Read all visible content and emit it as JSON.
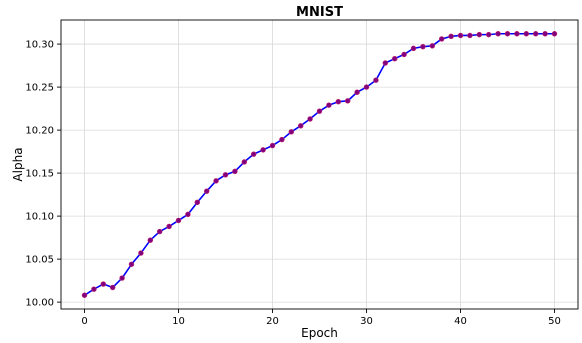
{
  "chart_data": {
    "type": "line",
    "title": "MNIST",
    "xlabel": "Epoch",
    "ylabel": "Alpha",
    "xlim": [
      -2.5,
      52.5
    ],
    "ylim": [
      9.992,
      10.328
    ],
    "xticks": [
      0,
      10,
      20,
      30,
      40,
      50
    ],
    "yticks": [
      10.0,
      10.05,
      10.1,
      10.15,
      10.2,
      10.25,
      10.3
    ],
    "xtick_labels": [
      "0",
      "10",
      "20",
      "30",
      "40",
      "50"
    ],
    "ytick_labels": [
      "10.00",
      "10.05",
      "10.10",
      "10.15",
      "10.20",
      "10.25",
      "10.30"
    ],
    "grid": true,
    "line_color": "#0000ff",
    "marker_color": "#800080",
    "series": [
      {
        "x": [
          0,
          1,
          2,
          3,
          4,
          5,
          6,
          7,
          8,
          9,
          10,
          11,
          12,
          13,
          14,
          15,
          16,
          17,
          18,
          19,
          20,
          21,
          22,
          23,
          24,
          25,
          26,
          27,
          28,
          29,
          30,
          31,
          32,
          33,
          34,
          35,
          36,
          37,
          38,
          39,
          40,
          41,
          42,
          43,
          44,
          45,
          46,
          47,
          48,
          49,
          50
        ],
        "values": [
          10.008,
          10.015,
          10.021,
          10.017,
          10.028,
          10.044,
          10.057,
          10.072,
          10.082,
          10.088,
          10.095,
          10.102,
          10.116,
          10.129,
          10.141,
          10.148,
          10.152,
          10.163,
          10.172,
          10.177,
          10.182,
          10.189,
          10.198,
          10.205,
          10.213,
          10.222,
          10.229,
          10.233,
          10.234,
          10.244,
          10.25,
          10.258,
          10.278,
          10.283,
          10.288,
          10.295,
          10.297,
          10.298,
          10.306,
          10.309,
          10.31,
          10.31,
          10.311,
          10.311,
          10.312,
          10.312,
          10.312,
          10.312,
          10.312,
          10.312,
          10.312
        ]
      }
    ]
  }
}
